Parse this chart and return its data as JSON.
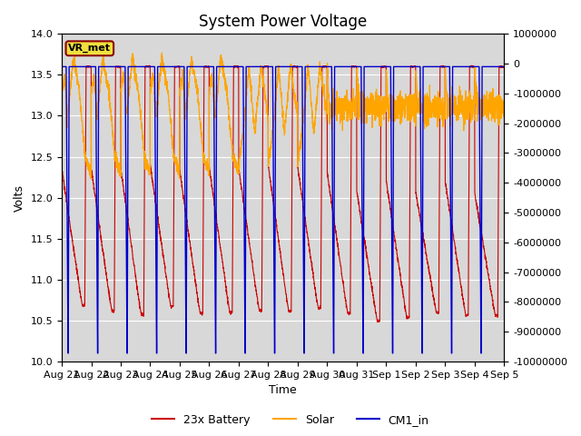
{
  "title": "System Power Voltage",
  "xlabel": "Time",
  "ylabel": "Volts",
  "xlim_end": 15,
  "ylim_left": [
    10.0,
    14.0
  ],
  "ylim_right": [
    -10000000,
    1000000
  ],
  "yticks_left": [
    10.0,
    10.5,
    11.0,
    11.5,
    12.0,
    12.5,
    13.0,
    13.5,
    14.0
  ],
  "yticks_right": [
    1000000,
    0,
    -1000000,
    -2000000,
    -3000000,
    -4000000,
    -5000000,
    -6000000,
    -7000000,
    -8000000,
    -9000000,
    -10000000
  ],
  "xtick_labels": [
    "Aug 21",
    "Aug 22",
    "Aug 23",
    "Aug 24",
    "Aug 25",
    "Aug 26",
    "Aug 27",
    "Aug 28",
    "Aug 29",
    "Aug 30",
    "Aug 31",
    "Sep 1",
    "Sep 2",
    "Sep 3",
    "Sep 4",
    "Sep 5"
  ],
  "background_color": "#d8d8d8",
  "plot_bg_color": "#d8d8d8",
  "grid_color": "white",
  "vr_met_label": "VR_met",
  "vr_met_box_color": "#f0e040",
  "vr_met_border_color": "#8B0000",
  "colors": {
    "battery": "#cc0000",
    "solar": "#FFA500",
    "cm1": "#0000cc"
  },
  "legend_labels": [
    "23x Battery",
    "Solar",
    "CM1_in"
  ],
  "title_fontsize": 12,
  "axis_fontsize": 9,
  "tick_fontsize": 8
}
